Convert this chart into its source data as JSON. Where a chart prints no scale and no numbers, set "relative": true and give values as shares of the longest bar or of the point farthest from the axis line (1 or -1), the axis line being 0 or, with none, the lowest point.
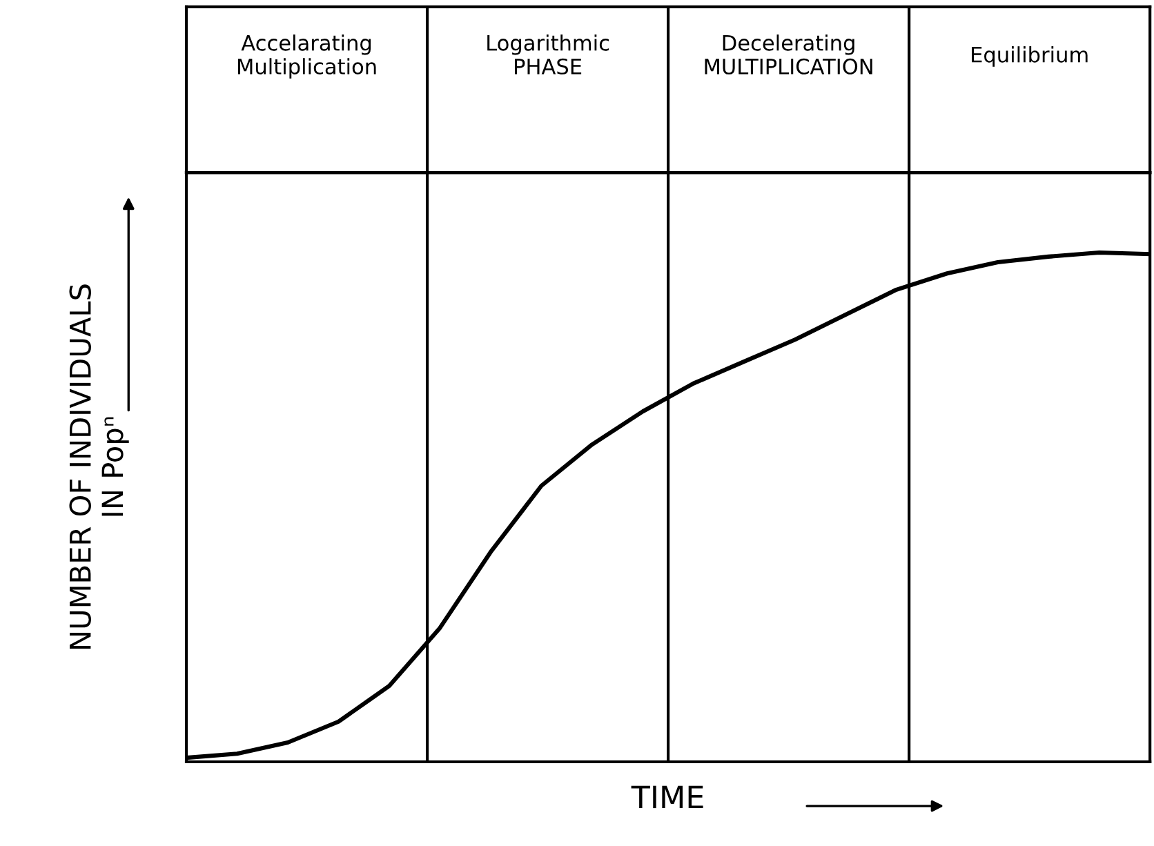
{
  "chart_data": {
    "type": "line",
    "relative": true,
    "ylabel": "NUMBER OF INDIVIDUALS\nIN Popⁿ",
    "xlabel": "TIME",
    "categories": [
      null,
      null,
      null,
      null,
      null,
      null,
      null,
      null,
      null,
      null,
      null,
      null,
      null,
      null,
      null,
      null,
      null,
      null,
      null,
      null
    ],
    "series": [
      {
        "color": "#000000",
        "values": [
          0.008,
          0.016,
          0.038,
          0.079,
          0.149,
          0.263,
          0.412,
          0.542,
          0.623,
          0.688,
          0.743,
          0.786,
          0.829,
          0.878,
          0.927,
          0.959,
          0.981,
          0.992,
          1.0,
          0.997
        ]
      }
    ],
    "annotations": [
      "Accelarating\nMultiplication",
      "Logarithmic\nPHASE",
      "Decelerating\nMULTIPLICATION",
      "Equilibrium"
    ],
    "line_style": "solid",
    "marker": "none",
    "grid": false,
    "legend": false,
    "tick_labels": false
  }
}
